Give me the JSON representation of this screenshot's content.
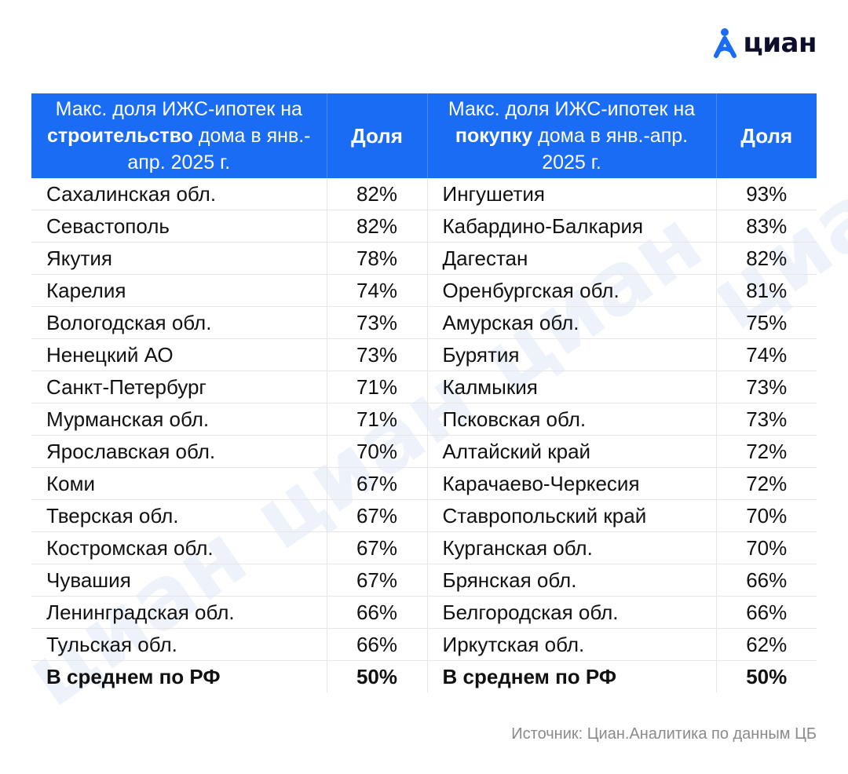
{
  "brand": {
    "name": "циан",
    "accent": "#1a6cf5",
    "dark": "#0c0e2b"
  },
  "table": {
    "header": {
      "left_title_pre": "Макс. доля ИЖС-ипотек на ",
      "left_title_bold": "строительство",
      "left_title_post": " дома в янв.-апр. 2025 г.",
      "left_share": "Доля",
      "right_title_pre": "Макс. доля ИЖС-ипотек на ",
      "right_title_bold": "покупку",
      "right_title_post": " дома в янв.-апр. 2025 г.",
      "right_share": "Доля"
    },
    "rows": [
      {
        "left_region": "Сахалинская обл.",
        "left_share": "82%",
        "right_region": "Ингушетия",
        "right_share": "93%"
      },
      {
        "left_region": "Севастополь",
        "left_share": "82%",
        "right_region": "Кабардино-Балкария",
        "right_share": "83%"
      },
      {
        "left_region": "Якутия",
        "left_share": "78%",
        "right_region": "Дагестан",
        "right_share": "82%"
      },
      {
        "left_region": "Карелия",
        "left_share": "74%",
        "right_region": "Оренбургская обл.",
        "right_share": "81%"
      },
      {
        "left_region": "Вологодская обл.",
        "left_share": "73%",
        "right_region": "Амурская обл.",
        "right_share": "75%"
      },
      {
        "left_region": "Ненецкий АО",
        "left_share": "73%",
        "right_region": "Бурятия",
        "right_share": "74%"
      },
      {
        "left_region": "Санкт-Петербург",
        "left_share": "71%",
        "right_region": "Калмыкия",
        "right_share": "73%"
      },
      {
        "left_region": "Мурманская обл.",
        "left_share": "71%",
        "right_region": "Псковская обл.",
        "right_share": "73%"
      },
      {
        "left_region": "Ярославская обл.",
        "left_share": "70%",
        "right_region": "Алтайский край",
        "right_share": "72%"
      },
      {
        "left_region": "Коми",
        "left_share": "67%",
        "right_region": "Карачаево-Черкесия",
        "right_share": "72%"
      },
      {
        "left_region": "Тверская обл.",
        "left_share": "67%",
        "right_region": "Ставропольский край",
        "right_share": "70%"
      },
      {
        "left_region": "Костромская обл.",
        "left_share": "67%",
        "right_region": "Курганская обл.",
        "right_share": "70%"
      },
      {
        "left_region": "Чувашия",
        "left_share": "67%",
        "right_region": "Брянская обл.",
        "right_share": "66%"
      },
      {
        "left_region": "Ленинградская обл.",
        "left_share": "66%",
        "right_region": "Белгородская обл.",
        "right_share": "66%"
      },
      {
        "left_region": "Тульская обл.",
        "left_share": "66%",
        "right_region": "Иркутская обл.",
        "right_share": "62%"
      }
    ],
    "average": {
      "left_region": "В среднем по РФ",
      "left_share": "50%",
      "right_region": "В среднем по РФ",
      "right_share": "50%"
    }
  },
  "source": "Источник: Циан.Аналитика по данным ЦБ"
}
